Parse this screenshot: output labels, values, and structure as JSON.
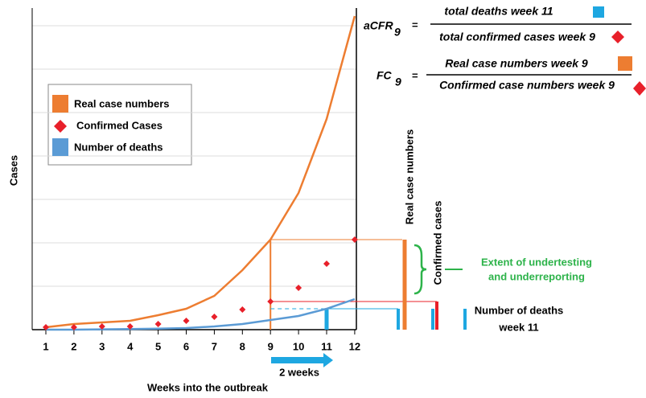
{
  "chart_data": {
    "type": "line",
    "x": [
      1,
      2,
      3,
      4,
      5,
      6,
      7,
      8,
      9,
      10,
      11,
      12
    ],
    "xlim": [
      0.513,
      12.06
    ],
    "xticks": [
      1,
      2,
      3,
      4,
      5,
      6,
      7,
      8,
      9,
      10,
      11,
      12
    ],
    "ylim": [
      0,
      100
    ],
    "yticks": [
      13.5,
      27,
      40.5,
      54,
      67.5,
      81,
      94.5
    ],
    "grid": true,
    "xlabel": "Weeks into the outbreak",
    "ylabel": "Cases",
    "series": [
      {
        "name": "Real case numbers",
        "color": "#ed7d31",
        "values": [
          0.75,
          1.75,
          2.25,
          2.75,
          4.5,
          6.5,
          10.5,
          18.5,
          28,
          42.5,
          65.5,
          97.5
        ]
      },
      {
        "name": "Confirmed Cases",
        "color": "#e8202a",
        "values": [
          0.75,
          0.75,
          1,
          1,
          1.75,
          2.75,
          4,
          6.25,
          8.75,
          13,
          20.5,
          28
        ]
      },
      {
        "name": "Number of deaths",
        "color": "#5b9bd5",
        "values": [
          0,
          0,
          0.1,
          0.2,
          0.3,
          0.5,
          1,
          1.75,
          3,
          4.25,
          6.5,
          9.5
        ]
      }
    ],
    "annotations": {
      "f1_lhs": "aCFR",
      "f1_sub": "9",
      "eq": "=",
      "f1_num": "total deaths week 11",
      "f1_den": "total confirmed cases week 9",
      "f2_lhs": "FC",
      "f2_sub": "9",
      "f2_num": "Real case numbers week 9",
      "f2_den": "Confirmed case numbers week 9",
      "bar_real": "Real case numbers",
      "bar_conf": "Confirmed cases",
      "extent_1": "Extent of undertesting",
      "extent_2": "and underreporting",
      "deaths_1": "Number of deaths",
      "deaths_2": "week 11",
      "shift": "2 weeks"
    }
  }
}
